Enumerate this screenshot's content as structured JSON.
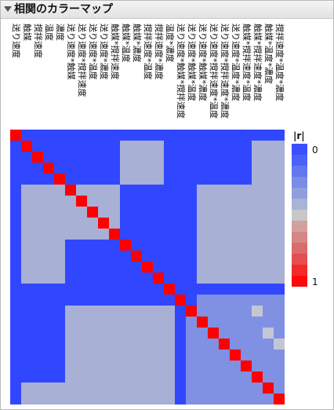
{
  "title": "相関のカラーマップ",
  "chart_data": {
    "type": "heatmap",
    "variables": [
      "送り速度",
      "触媒",
      "撹拌速度",
      "温度",
      "濃度",
      "送り速度*触媒",
      "送り速度*撹拌速度",
      "送り速度*温度",
      "送り速度*濃度",
      "触媒*撹拌速度",
      "触媒*温度",
      "触媒*濃度",
      "撹拌速度*温度",
      "撹拌速度*濃度",
      "温度*濃度",
      "送り速度*触媒*撹拌速度",
      "送り速度*触媒*温度",
      "送り速度*触媒*濃度",
      "送り速度*撹拌速度*温度",
      "送り速度*撹拌速度*濃度",
      "送り速度*温度*濃度",
      "触媒*撹拌速度*温度",
      "触媒*撹拌速度*濃度",
      "触媒*温度*濃度",
      "撹拌速度*温度*濃度"
    ],
    "value_label": "|r|",
    "color_range": [
      0,
      1
    ],
    "legend": {
      "title": "|r|",
      "min_label": "0",
      "max_label": "1",
      "placement": "right",
      "colors": [
        "#3a50ff",
        "#4b61f8",
        "#6377ed",
        "#7a8ce4",
        "#8f9fdb",
        "#a8b4d6",
        "#c7c7c7",
        "#d3a0a0",
        "#d78686",
        "#db6c6c",
        "#e54e4e",
        "#f22a2a",
        "#ff0a0a"
      ]
    },
    "scale_colors": {
      "zero": "#3147ff",
      "low": "#a8b0d5",
      "mid": "#8090e3",
      "light": "#c4c7d3",
      "one": "#ff0000"
    },
    "cell_levels": [
      "0000000000000000000000000",
      "0000000000111100000000111",
      "0000000000111100000000111",
      "0000000000111100000000111",
      "0000000000111100000000111",
      "0111101111000000011111111",
      "0111110111000000011111111",
      "0111111011000000011111111",
      "0111111101000000011111111",
      "0111111110000000011111111",
      "0111100000000000011111111",
      "0111100000000000011111111",
      "0111100000000000011111111",
      "0111100000000000011111111",
      "0000000000000000000000000",
      "0000000000000000022222222",
      "0000011111111110222222322",
      "0000011111111110222222222",
      "0000011111111110222222232",
      "0000011111111110222222223",
      "0000011111111110222222222",
      "0000011111111110222222222",
      "0000011111111110222222222",
      "0111111111111110222222222",
      "0111111111111110222222222"
    ]
  }
}
